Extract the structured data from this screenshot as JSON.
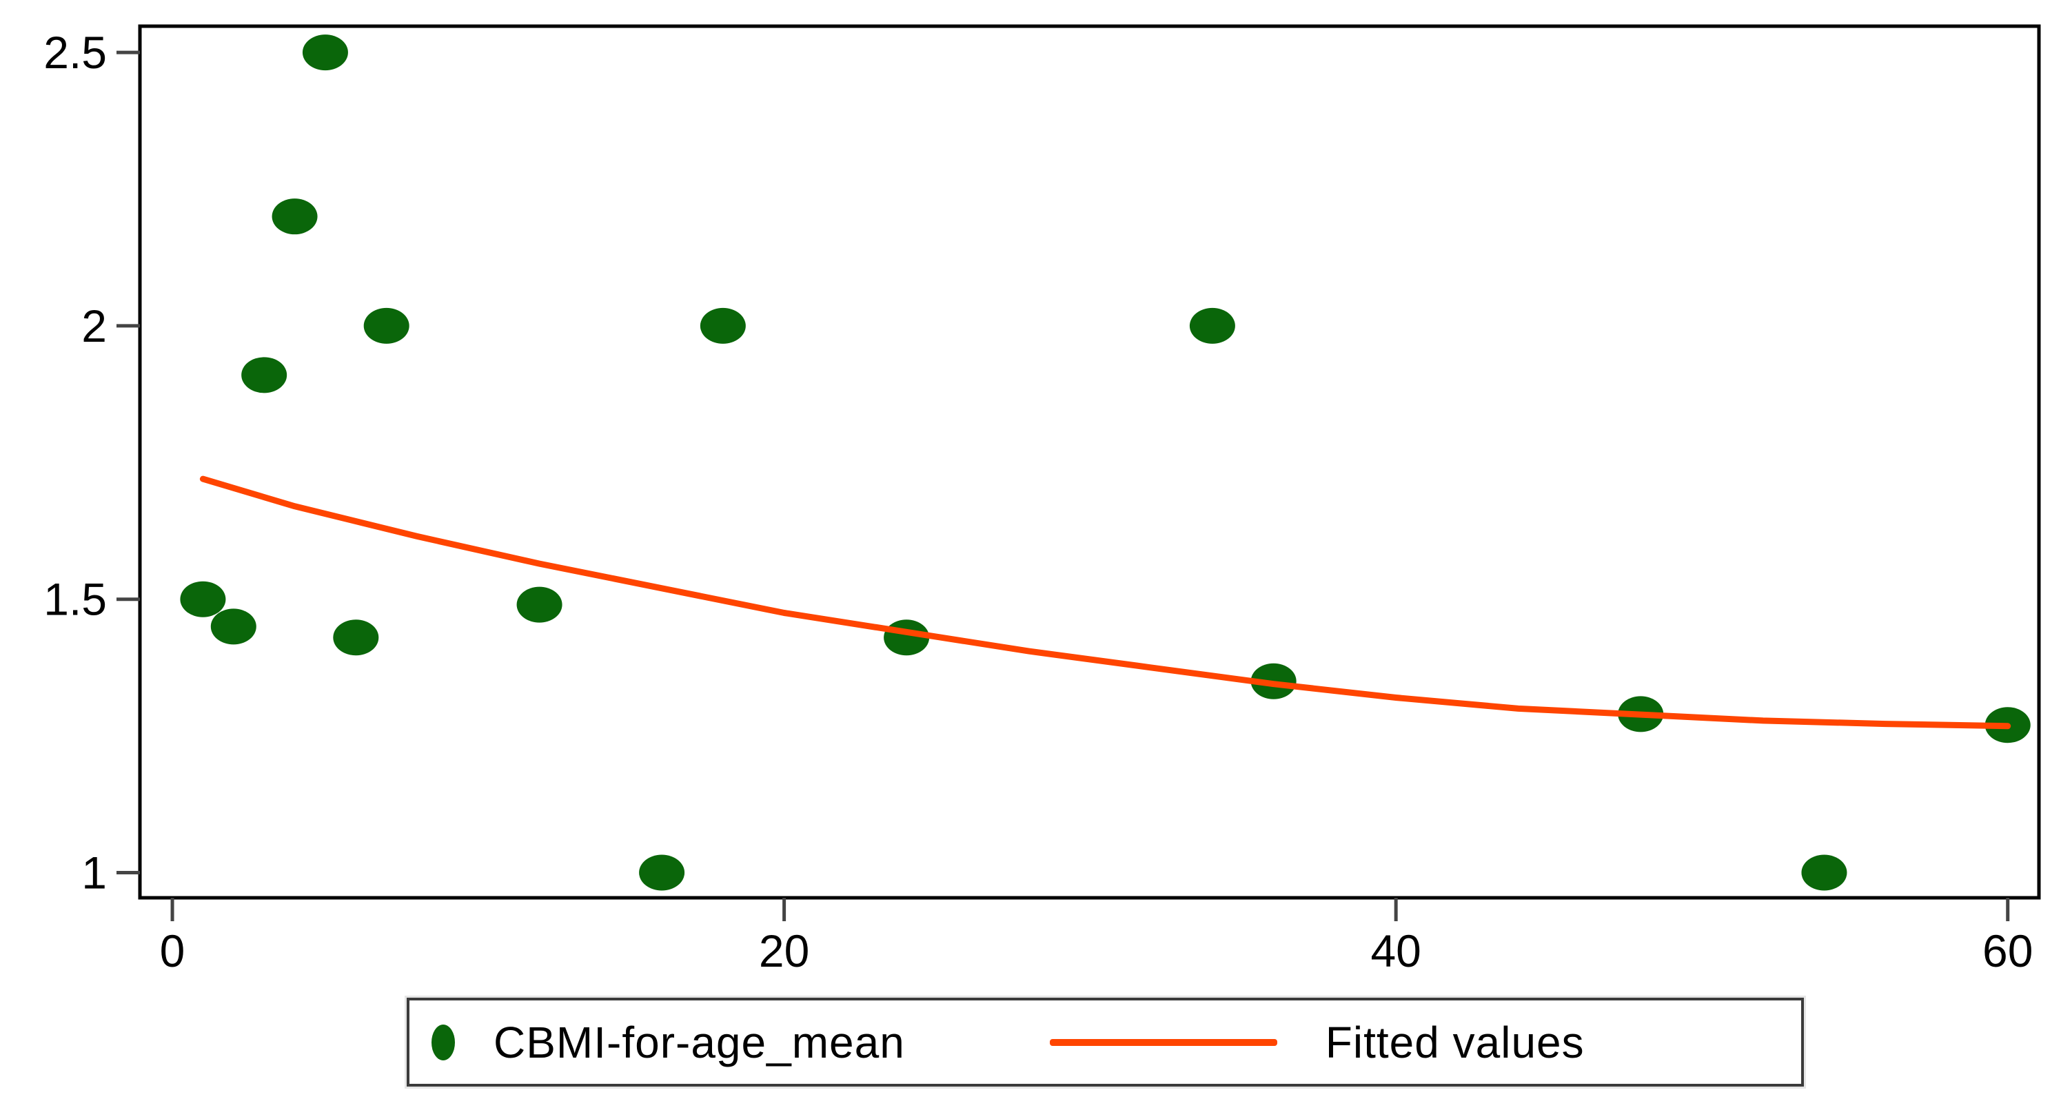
{
  "figure": {
    "background": "#ffffff"
  },
  "chart_data": {
    "type": "scatter",
    "title": "",
    "xlabel": "",
    "ylabel": "",
    "x_range": [
      -1.06,
      61.02
    ],
    "y_range": [
      0.954,
      2.548
    ],
    "x_ticks": [
      0,
      20,
      40,
      60
    ],
    "x_tick_labels": [
      "0",
      "20",
      "40",
      "60"
    ],
    "y_ticks": [
      1,
      1.5,
      2,
      2.5
    ],
    "y_tick_labels": [
      "1",
      "1.5",
      "2",
      "2.5"
    ],
    "grid": false,
    "legend_position": "bottom-center",
    "series": [
      {
        "name": "CBMI-for-age_mean",
        "type": "scatter",
        "color": "#0a660a",
        "points": [
          [
            1,
            1.5
          ],
          [
            2,
            1.45
          ],
          [
            3,
            1.91
          ],
          [
            4,
            2.2
          ],
          [
            5,
            2.5
          ],
          [
            6,
            1.43
          ],
          [
            7,
            2.0
          ],
          [
            12,
            1.49
          ],
          [
            16,
            1.0
          ],
          [
            18,
            2.0
          ],
          [
            24,
            1.43
          ],
          [
            34,
            2.0
          ],
          [
            36,
            1.35
          ],
          [
            48,
            1.29
          ],
          [
            54,
            1.0
          ],
          [
            60,
            1.27
          ]
        ]
      },
      {
        "name": "Fitted values",
        "type": "line",
        "color": "#ff4500",
        "points": [
          [
            1,
            1.72
          ],
          [
            4,
            1.67
          ],
          [
            8,
            1.615
          ],
          [
            12,
            1.565
          ],
          [
            16,
            1.52
          ],
          [
            20,
            1.475
          ],
          [
            24,
            1.44
          ],
          [
            28,
            1.405
          ],
          [
            32,
            1.375
          ],
          [
            36,
            1.345
          ],
          [
            40,
            1.32
          ],
          [
            44,
            1.3
          ],
          [
            48,
            1.289
          ],
          [
            52,
            1.278
          ],
          [
            56,
            1.272
          ],
          [
            60,
            1.268
          ]
        ]
      }
    ]
  },
  "colors": {
    "axis": "#000000",
    "tick": "#444444",
    "tick_label": "#000000",
    "legend_border": "#3b3b3b"
  }
}
